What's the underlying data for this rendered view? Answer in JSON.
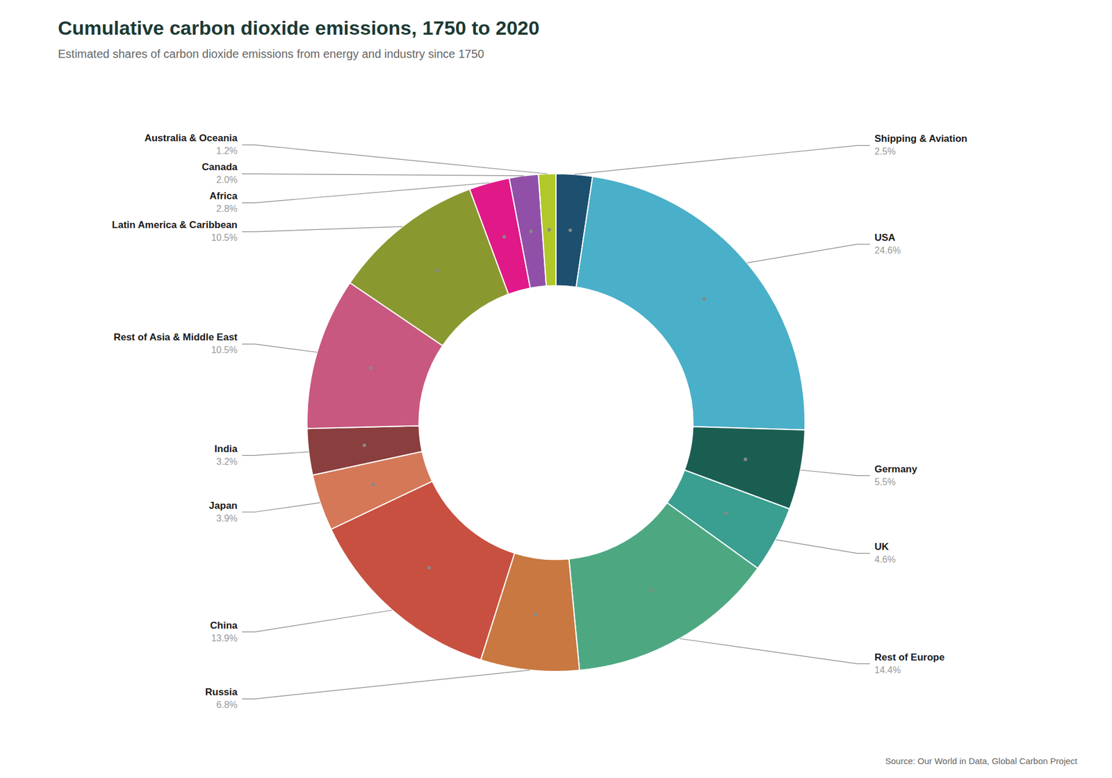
{
  "chart_data": {
    "type": "donut",
    "title": "Cumulative carbon dioxide emissions, 1750 to 2020",
    "subtitle": "Estimated shares of carbon dioxide emissions from energy and industry since 1750",
    "annotations": [
      "Source: Our World in Data, Global Carbon Project"
    ],
    "categories": [
      "Shipping & Aviation",
      "USA",
      "Germany",
      "UK",
      "Rest of Europe",
      "Russia",
      "China",
      "Japan",
      "India",
      "Rest of Asia & Middle East",
      "Latin America & Caribbean",
      "Africa",
      "Canada",
      "Australia & Oceania"
    ],
    "values": [
      2.5,
      24.6,
      5.5,
      4.6,
      14.4,
      6.8,
      13.9,
      3.9,
      3.2,
      10.5,
      10.5,
      2.8,
      2.0,
      1.2
    ],
    "value_labels": [
      "2.5%",
      "24.6%",
      "5.5%",
      "4.6%",
      "14.4%",
      "6.8%",
      "13.9%",
      "3.9%",
      "3.2%",
      "10.5%",
      "10.5%",
      "2.8%",
      "2.0%",
      "1.2%"
    ],
    "colors": [
      "#1d4f6e",
      "#4aafc8",
      "#1a5e52",
      "#3a9e90",
      "#4da882",
      "#c87840",
      "#c85040",
      "#d47858",
      "#8a3e3e",
      "#c85880",
      "#8a9830",
      "#e01888",
      "#9050a8",
      "#b0c828"
    ],
    "data_labels": true
  }
}
